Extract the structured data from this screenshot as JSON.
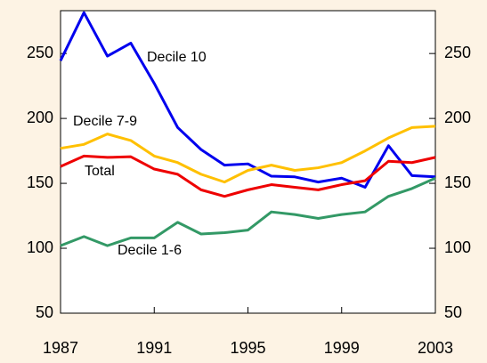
{
  "chart_data": {
    "type": "line",
    "x": [
      1987,
      1988,
      1989,
      1990,
      1991,
      1992,
      1993,
      1994,
      1995,
      1996,
      1997,
      1998,
      1999,
      2000,
      2001,
      2002,
      2003
    ],
    "xlim": [
      1987,
      2003
    ],
    "xticks": [
      1987,
      1991,
      1995,
      1999,
      2003
    ],
    "ylim": [
      50,
      283
    ],
    "yticks": [
      50,
      100,
      150,
      200,
      250
    ],
    "y2lim": [
      50,
      283
    ],
    "y2ticks": [
      50,
      100,
      150,
      200,
      250
    ],
    "series": [
      {
        "name": "Decile 10",
        "color": "#0000ee",
        "values": [
          244.5,
          281.5,
          248,
          258,
          227,
          193,
          176,
          164,
          165,
          155.5,
          155,
          151,
          154,
          147,
          179,
          156,
          155
        ]
      },
      {
        "name": "Decile 7-9",
        "color": "#ffc000",
        "values": [
          177,
          180,
          188,
          183,
          171,
          166,
          157,
          151,
          160,
          164,
          160,
          162,
          166,
          175,
          185,
          193,
          194
        ]
      },
      {
        "name": "Total",
        "color": "#ee0000",
        "values": [
          163,
          171,
          170,
          170.5,
          161,
          157,
          145,
          140,
          145,
          149,
          147,
          145,
          149,
          152,
          167,
          166,
          170
        ]
      },
      {
        "name": "Decile 1-6",
        "color": "#339966",
        "values": [
          102,
          109,
          102,
          108,
          108,
          120,
          111,
          112,
          114,
          128,
          126,
          123,
          126,
          128,
          140,
          146,
          154
        ]
      }
    ]
  }
}
